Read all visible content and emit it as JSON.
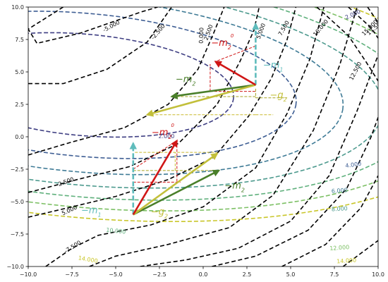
{
  "chart_data": {
    "type": "contour",
    "title": "",
    "xlabel": "",
    "ylabel": "",
    "xlim": [
      -10,
      10
    ],
    "ylim": [
      -10,
      10
    ],
    "grid": false,
    "x_ticks": [
      "−10.0",
      "−7.5",
      "−5.0",
      "−2.5",
      "0.0",
      "2.5",
      "5.0",
      "7.5",
      "10.0"
    ],
    "y_ticks": [
      "10.0",
      "7.5",
      "5.0",
      "2.5",
      "0.0",
      "−2.5",
      "−5.0",
      "−7.5",
      "−10.0"
    ],
    "colors": {
      "black_contour": "#000000",
      "m1": "#5fbcbc",
      "m2": "#4a7f2a",
      "g2": "#c2bf3a",
      "m2_zero": "#d01616",
      "dash_red": "#d01616",
      "dash_olive": "#a6a321",
      "dash_gold": "#c9b92e"
    },
    "black_contour_levels": [
      "-5.000",
      "-2.500",
      "0.000",
      "2.500",
      "5.000",
      "7.500",
      "10.000",
      "12.500",
      "15.000",
      "17.500",
      "20.000"
    ],
    "colored_contour_levels": [
      {
        "level": "2.000",
        "color": "#3f3f83"
      },
      {
        "level": "4.000",
        "color": "#3d5d93"
      },
      {
        "level": "6.000",
        "color": "#3f7b96"
      },
      {
        "level": "8.000",
        "color": "#4d9a8e"
      },
      {
        "level": "10.000",
        "color": "#5fb07c"
      },
      {
        "level": "12.000",
        "color": "#7dc065"
      },
      {
        "level": "14.000",
        "color": "#c9c62a"
      }
    ],
    "vector_groups": [
      {
        "origin": [
          3,
          4
        ],
        "vectors": {
          "m1": {
            "end": [
              3,
              8.7
            ],
            "label": "−m",
            "sub": "1"
          },
          "m2": {
            "end": [
              -1.8,
              3.1
            ],
            "label": "−m",
            "sub": "2"
          },
          "g2": {
            "end": [
              -3.2,
              1.7
            ],
            "label": "−g",
            "sub": "2"
          },
          "m2_zero": {
            "end": [
              0.7,
              5.8
            ],
            "label": "−m",
            "sub": "2",
            "sup": "0"
          }
        }
      },
      {
        "origin": [
          -4,
          -6
        ],
        "vectors": {
          "m1": {
            "end": [
              -4,
              -0.5
            ],
            "label": "−m",
            "sub": "1"
          },
          "m2": {
            "end": [
              0.9,
              -2.6
            ],
            "label": "−m",
            "sub": "2"
          },
          "g2": {
            "end": [
              0.8,
              -1.3
            ],
            "label": "−g",
            "sub": "2"
          },
          "m2_zero": {
            "end": [
              -1.5,
              -0.3
            ],
            "label": "−m",
            "sub": "2",
            "sup": "0"
          }
        }
      }
    ]
  }
}
